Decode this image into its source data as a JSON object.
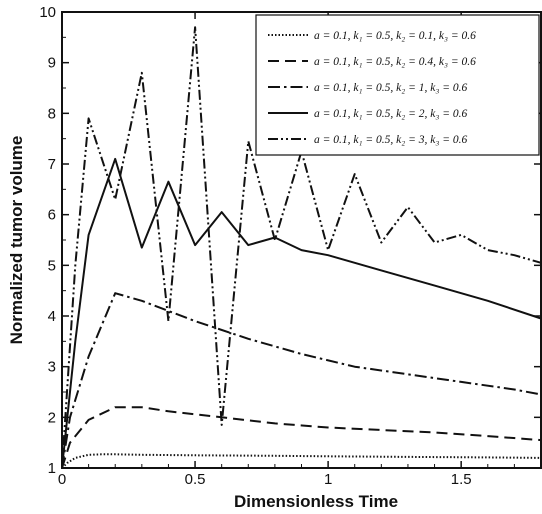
{
  "chart_data": {
    "type": "line",
    "xlabel": "Dimensionless Time",
    "ylabel": "Normalized tumor volume",
    "xlim": [
      0,
      1.8
    ],
    "ylim": [
      1,
      10
    ],
    "x_ticks": [
      0,
      0.5,
      1,
      1.5
    ],
    "x_tick_labels": [
      "0",
      "0.5",
      "1",
      "1.5"
    ],
    "y_ticks": [
      1,
      2,
      3,
      4,
      5,
      6,
      7,
      8,
      9,
      10
    ],
    "y_tick_labels": [
      "1",
      "2",
      "3",
      "4",
      "5",
      "6",
      "7",
      "8",
      "9",
      "10"
    ],
    "grid": false,
    "legend_position": "top-right",
    "series": [
      {
        "name": "a = 0.1, k1 = 0.5, k2 = 0.1, k3 = 0.6",
        "style": "dotted",
        "x": [
          0,
          0.02,
          0.05,
          0.1,
          0.15,
          0.2,
          0.3,
          0.5,
          0.8,
          1.0,
          1.3,
          1.6,
          1.8
        ],
        "y": [
          1.0,
          1.1,
          1.2,
          1.26,
          1.27,
          1.27,
          1.26,
          1.25,
          1.24,
          1.23,
          1.22,
          1.21,
          1.2
        ]
      },
      {
        "name": "a = 0.1, k1 = 0.5, k2 = 0.4, k3 = 0.6",
        "style": "dashed",
        "x": [
          0,
          0.03,
          0.1,
          0.2,
          0.3,
          0.4,
          0.6,
          0.8,
          1.0,
          1.2,
          1.4,
          1.6,
          1.8
        ],
        "y": [
          1.0,
          1.5,
          1.95,
          2.2,
          2.2,
          2.12,
          2.0,
          1.88,
          1.8,
          1.75,
          1.7,
          1.63,
          1.55
        ]
      },
      {
        "name": "a = 0.1, k1 = 0.5, k2 = 1, k3 = 0.6",
        "style": "dash-dot",
        "x": [
          0,
          0.03,
          0.1,
          0.2,
          0.3,
          0.5,
          0.7,
          0.9,
          1.1,
          1.3,
          1.5,
          1.7,
          1.8
        ],
        "y": [
          1.0,
          2.0,
          3.2,
          4.45,
          4.3,
          3.9,
          3.55,
          3.25,
          3.0,
          2.85,
          2.7,
          2.55,
          2.45
        ]
      },
      {
        "name": "a = 0.1, k1 = 0.5, k2 = 2, k3 = 0.6",
        "style": "solid",
        "x": [
          0,
          0.05,
          0.1,
          0.2,
          0.3,
          0.4,
          0.5,
          0.6,
          0.7,
          0.8,
          0.9,
          1.0,
          1.2,
          1.4,
          1.6,
          1.8
        ],
        "y": [
          1.0,
          3.5,
          5.6,
          7.1,
          5.35,
          6.65,
          5.4,
          6.05,
          5.4,
          5.55,
          5.3,
          5.2,
          4.9,
          4.6,
          4.3,
          3.95
        ]
      },
      {
        "name": "a = 0.1, k1 = 0.5, k2 = 3, k3 = 0.6",
        "style": "dash-dot-dot",
        "x": [
          0,
          0.05,
          0.1,
          0.2,
          0.3,
          0.4,
          0.5,
          0.6,
          0.7,
          0.8,
          0.9,
          1.0,
          1.1,
          1.2,
          1.3,
          1.4,
          1.5,
          1.6,
          1.7,
          1.8
        ],
        "y": [
          1.0,
          5.0,
          7.9,
          6.3,
          8.8,
          3.9,
          9.7,
          1.85,
          7.45,
          5.5,
          7.25,
          5.3,
          6.8,
          5.45,
          6.15,
          5.45,
          5.6,
          5.3,
          5.2,
          5.05
        ]
      }
    ]
  },
  "legend": {
    "entries": [
      {
        "label": "a = 0.1, k₁ = 0.5, k₂ = 0.1, k₃ = 0.6"
      },
      {
        "label": "a = 0.1, k₁ = 0.5, k₂ = 0.4, k₃ = 0.6"
      },
      {
        "label": "a = 0.1, k₁ = 0.5,  k₂ = 1, k₃ = 0.6"
      },
      {
        "label": "a = 0.1, k₁ = 0.5,  k₂ = 2, k₃ = 0.6"
      },
      {
        "label": "a = 0.1, k₁ = 0.5,  k₂ = 3, k₃ = 0.6"
      }
    ]
  },
  "colors": {
    "line": "#111111",
    "axis": "#111111",
    "background": "#ffffff"
  }
}
